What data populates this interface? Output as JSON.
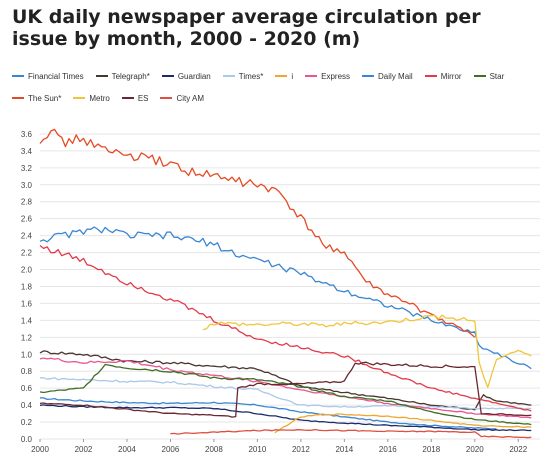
{
  "chart_data": {
    "type": "line",
    "title": "UK daily newspaper average circulation per issue by month, 2000 - 2020 (m)",
    "xlabel": "",
    "ylabel": "",
    "xlim": [
      2000,
      2023
    ],
    "ylim": [
      0,
      3.8
    ],
    "x_ticks": [
      "2000",
      "2002",
      "2004",
      "2006",
      "2008",
      "2010",
      "2012",
      "2014",
      "2016",
      "2018",
      "2020",
      "2022"
    ],
    "y_ticks": [
      "0.0",
      "0.2",
      "0.4",
      "0.6",
      "0.8",
      "1.0",
      "1.2",
      "1.4",
      "1.6",
      "1.8",
      "2.0",
      "2.2",
      "2.4",
      "2.6",
      "2.8",
      "3.0",
      "3.2",
      "3.4",
      "3.6"
    ],
    "grid": true,
    "legend_position": "top",
    "series": [
      {
        "name": "Financial Times",
        "color": "#3b86d1",
        "x": [
          2000,
          2002,
          2004,
          2006,
          2008,
          2010,
          2012,
          2014,
          2016,
          2018,
          2020,
          2021
        ],
        "y": [
          0.48,
          0.45,
          0.43,
          0.42,
          0.43,
          0.4,
          0.32,
          0.26,
          0.2,
          0.16,
          0.13,
          0.12
        ]
      },
      {
        "name": "Telegraph*",
        "color": "#4a3530",
        "x": [
          2000,
          2002,
          2004,
          2006,
          2008,
          2010,
          2012,
          2014,
          2016,
          2018,
          2020,
          2020.4,
          2021,
          2022,
          2022.6
        ],
        "y": [
          1.03,
          1.0,
          0.92,
          0.9,
          0.86,
          0.83,
          0.62,
          0.55,
          0.48,
          0.4,
          0.35,
          0.52,
          0.45,
          0.42,
          0.4
        ]
      },
      {
        "name": "Guardian",
        "color": "#1a2b6b",
        "x": [
          2000,
          2002,
          2004,
          2006,
          2008,
          2010,
          2012,
          2014,
          2016,
          2018,
          2020,
          2022.6
        ],
        "y": [
          0.4,
          0.38,
          0.37,
          0.37,
          0.36,
          0.3,
          0.22,
          0.19,
          0.16,
          0.14,
          0.11,
          0.1
        ]
      },
      {
        "name": "Times*",
        "color": "#a9c8ea",
        "x": [
          2000,
          2002,
          2004,
          2006,
          2008,
          2010,
          2012,
          2014,
          2016,
          2018,
          2020,
          2022.6
        ],
        "y": [
          0.72,
          0.7,
          0.68,
          0.67,
          0.62,
          0.58,
          0.4,
          0.38,
          0.39,
          0.38,
          0.36,
          0.36
        ]
      },
      {
        "name": "i",
        "color": "#f0a732",
        "x": [
          2010.8,
          2011.2,
          2012,
          2013,
          2014,
          2016,
          2018,
          2020,
          2022.6
        ],
        "y": [
          0.07,
          0.14,
          0.26,
          0.29,
          0.29,
          0.27,
          0.22,
          0.16,
          0.14
        ]
      },
      {
        "name": "Express",
        "color": "#ea5690",
        "x": [
          2000,
          2002,
          2004,
          2006,
          2008,
          2010,
          2012,
          2014,
          2016,
          2018,
          2020,
          2022.6
        ],
        "y": [
          0.96,
          0.9,
          0.92,
          0.82,
          0.75,
          0.68,
          0.58,
          0.5,
          0.42,
          0.36,
          0.3,
          0.25
        ]
      },
      {
        "name": "Daily Mail",
        "color": "#3b86d1",
        "x": [
          2000,
          2001,
          2002,
          2003,
          2004,
          2006,
          2008,
          2009,
          2010,
          2012,
          2014,
          2016,
          2018,
          2020,
          2020.2,
          2022.6
        ],
        "y": [
          2.35,
          2.4,
          2.45,
          2.48,
          2.4,
          2.4,
          2.3,
          2.18,
          2.12,
          1.95,
          1.75,
          1.58,
          1.4,
          1.25,
          1.1,
          0.83
        ]
      },
      {
        "name": "Mirror",
        "color": "#e33a4a",
        "x": [
          2000,
          2002,
          2004,
          2006,
          2008,
          2010,
          2012,
          2014,
          2016,
          2018,
          2020,
          2022.6
        ],
        "y": [
          2.28,
          2.1,
          1.85,
          1.65,
          1.4,
          1.18,
          1.08,
          0.98,
          0.78,
          0.6,
          0.48,
          0.33
        ]
      },
      {
        "name": "Star",
        "color": "#3f6e24",
        "x": [
          2000,
          2002,
          2003,
          2004,
          2006,
          2008,
          2010,
          2012,
          2014,
          2016,
          2018,
          2020,
          2022.6
        ],
        "y": [
          0.55,
          0.6,
          0.88,
          0.84,
          0.8,
          0.72,
          0.7,
          0.62,
          0.5,
          0.45,
          0.32,
          0.23,
          0.17
        ]
      },
      {
        "name": "The Sun*",
        "color": "#e54a25",
        "x": [
          2000,
          2000.5,
          2001,
          2002,
          2003,
          2004,
          2005,
          2006,
          2007,
          2008,
          2009,
          2010,
          2011,
          2012,
          2013,
          2014,
          2015,
          2016,
          2017,
          2018,
          2019,
          2020
        ],
        "y": [
          3.55,
          3.65,
          3.5,
          3.55,
          3.4,
          3.35,
          3.3,
          3.25,
          3.15,
          3.1,
          3.05,
          3.0,
          2.9,
          2.6,
          2.3,
          2.2,
          1.85,
          1.7,
          1.6,
          1.45,
          1.35,
          1.2
        ]
      },
      {
        "name": "Metro",
        "color": "#efc63a",
        "x": [
          2007.5,
          2008,
          2010,
          2011,
          2012,
          2013,
          2014,
          2016,
          2018,
          2020,
          2020.2,
          2020.6,
          2021,
          2022,
          2022.6
        ],
        "y": [
          1.3,
          1.37,
          1.35,
          1.36,
          1.36,
          1.34,
          1.36,
          1.38,
          1.45,
          1.4,
          0.9,
          0.6,
          0.95,
          1.05,
          0.98
        ]
      },
      {
        "name": "ES",
        "color": "#6b2730",
        "x": [
          2000,
          2002,
          2004,
          2006,
          2008,
          2009,
          2009.1,
          2010,
          2012,
          2014,
          2014.5,
          2016,
          2018,
          2020,
          2020.3,
          2022.6
        ],
        "y": [
          0.42,
          0.4,
          0.35,
          0.3,
          0.28,
          0.26,
          0.6,
          0.65,
          0.65,
          0.68,
          0.9,
          0.88,
          0.86,
          0.85,
          0.3,
          0.28
        ]
      },
      {
        "name": "City AM",
        "color": "#e05040",
        "x": [
          2006,
          2008,
          2010,
          2012,
          2014,
          2016,
          2018,
          2020,
          2020.3,
          2022.6
        ],
        "y": [
          0.06,
          0.08,
          0.1,
          0.11,
          0.1,
          0.09,
          0.09,
          0.08,
          0.03,
          0.02
        ]
      }
    ]
  }
}
